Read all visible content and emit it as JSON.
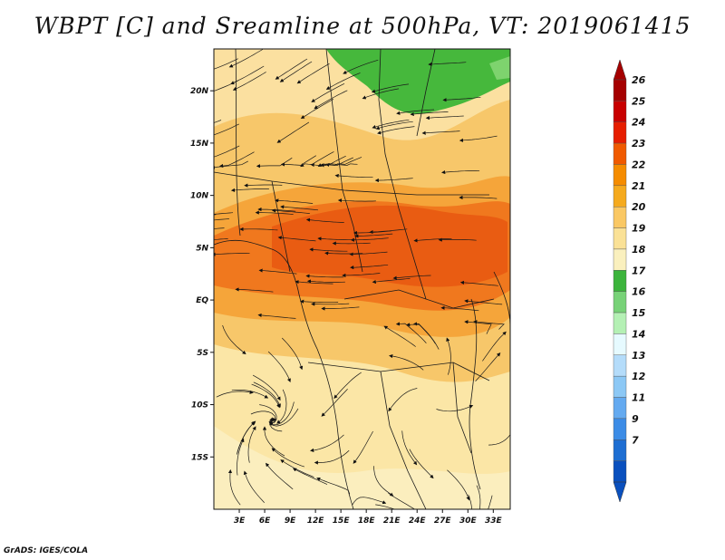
{
  "title": "WBPT [C] and Sreamline at 500hPa, VT: 2019061415",
  "credit": "GrADS: IGES/COLA",
  "map": {
    "lon_range": [
      0,
      35
    ],
    "lat_range": [
      -20,
      24
    ],
    "x_ticks": [
      "3E",
      "6E",
      "9E",
      "12E",
      "15E",
      "18E",
      "21E",
      "24E",
      "27E",
      "30E",
      "33E"
    ],
    "x_tick_values": [
      3,
      6,
      9,
      12,
      15,
      18,
      21,
      24,
      27,
      30,
      33
    ],
    "y_ticks": [
      "20N",
      "15N",
      "10N",
      "5N",
      "EQ",
      "5S",
      "10S",
      "15S"
    ],
    "y_tick_values": [
      20,
      15,
      10,
      5,
      0,
      -5,
      -10,
      -15
    ]
  },
  "colorbar": {
    "labels": [
      "26",
      "25",
      "24",
      "23",
      "22",
      "21",
      "20",
      "19",
      "18",
      "17",
      "16",
      "15",
      "14",
      "13",
      "12",
      "11",
      "9",
      "7"
    ],
    "colors": [
      "#a50000",
      "#c80000",
      "#e61e00",
      "#f05a00",
      "#f58c00",
      "#f5aa1e",
      "#fac864",
      "#fae196",
      "#faf0be",
      "#3cb43c",
      "#78d278",
      "#b4f0b4",
      "#e6faff",
      "#b4dcfa",
      "#8cc8f5",
      "#64aaf0",
      "#3c8ce6",
      "#1e6ed2",
      "#0a50be"
    ],
    "arrow_top": "#a50000",
    "arrow_bottom": "#0a50be"
  },
  "palette": {
    "green": "#46b83c",
    "pale_yellow": "#fbe6a0",
    "light_orange": "#f7c76a",
    "orange": "#f5a53a",
    "dark_orange": "#f0781e",
    "red_orange": "#e95c12"
  }
}
